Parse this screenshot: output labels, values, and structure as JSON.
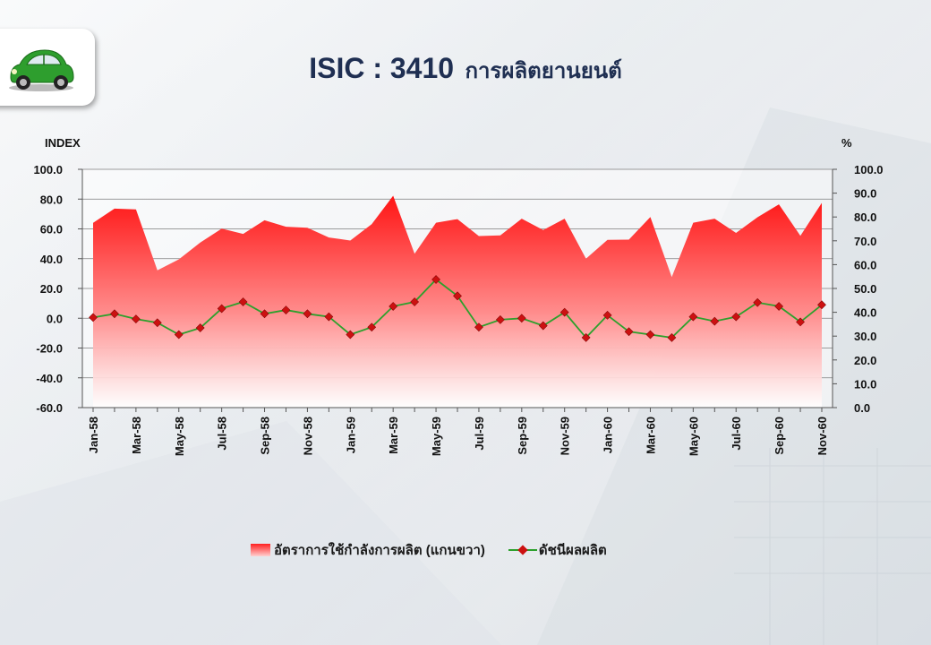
{
  "title": {
    "code": "ISIC : 3410",
    "name": "การผลิตยานยนต์"
  },
  "logo": {
    "icon": "green-car-icon",
    "color": "#2e9e2e"
  },
  "chart_data": {
    "type": "line+area",
    "left_axis_label": "INDEX",
    "right_axis_label": "%",
    "left_ylim": [
      -60,
      100
    ],
    "left_ticks": [
      "100.0",
      "80.0",
      "60.0",
      "40.0",
      "20.0",
      "0.0",
      "-20.0",
      "-40.0",
      "-60.0"
    ],
    "right_ylim": [
      0,
      100
    ],
    "right_ticks": [
      "100.0",
      "90.0",
      "80.0",
      "70.0",
      "60.0",
      "50.0",
      "40.0",
      "30.0",
      "20.0",
      "10.0",
      "0.0"
    ],
    "categories": [
      "Jan-58",
      "Feb-58",
      "Mar-58",
      "Apr-58",
      "May-58",
      "Jun-58",
      "Jul-58",
      "Aug-58",
      "Sep-58",
      "Oct-58",
      "Nov-58",
      "Dec-58",
      "Jan-59",
      "Feb-59",
      "Mar-59",
      "Apr-59",
      "May-59",
      "Jun-59",
      "Jul-59",
      "Aug-59",
      "Sep-59",
      "Oct-59",
      "Nov-59",
      "Dec-59",
      "Jan-60",
      "Feb-60",
      "Mar-60",
      "Apr-60",
      "May-60",
      "Jun-60",
      "Jul-60",
      "Aug-60",
      "Sep-60",
      "Oct-60",
      "Nov-60"
    ],
    "tick_labels": [
      "Jan-58",
      "Mar-58",
      "May-58",
      "Jul-58",
      "Sep-58",
      "Nov-58",
      "Jan-59",
      "Mar-59",
      "May-59",
      "Jul-59",
      "Sep-59",
      "Nov-59",
      "Jan-60",
      "Mar-60",
      "May-60",
      "Jul-60",
      "Sep-60",
      "Nov-60"
    ],
    "series": [
      {
        "name": "อัตราการใช้กำลังการผลิต (แกนขวา)",
        "axis": "right",
        "type": "area",
        "color": "#ff1a1a",
        "values": [
          77.5,
          83.5,
          83.2,
          57.6,
          62.2,
          69.3,
          75.1,
          72.9,
          78.6,
          75.9,
          75.5,
          71.4,
          70.1,
          77.0,
          88.9,
          64.6,
          77.6,
          79.1,
          72.0,
          72.3,
          79.3,
          74.5,
          79.3,
          62.5,
          70.4,
          70.5,
          80.0,
          54.8,
          77.6,
          79.3,
          73.3,
          79.9,
          85.3,
          72.1,
          85.9
        ]
      },
      {
        "name": "ดัชนีผลผลิต",
        "axis": "left",
        "type": "line",
        "color": "#2ca02c",
        "marker_color": "#cc1111",
        "values": [
          0.5,
          3.0,
          -0.5,
          -3.0,
          -11.0,
          -6.5,
          6.5,
          11.0,
          3.0,
          5.5,
          3.0,
          1.0,
          -11.0,
          -6.0,
          8.0,
          11.0,
          26.0,
          15.0,
          -6.0,
          -1.0,
          0.0,
          -5.0,
          4.0,
          -13.0,
          2.0,
          -9.0,
          -11.0,
          -13.0,
          1.0,
          -2.0,
          1.0,
          10.5,
          8.0,
          -2.5,
          9.0
        ]
      }
    ],
    "grid": "horizontal",
    "legend_position": "bottom"
  }
}
